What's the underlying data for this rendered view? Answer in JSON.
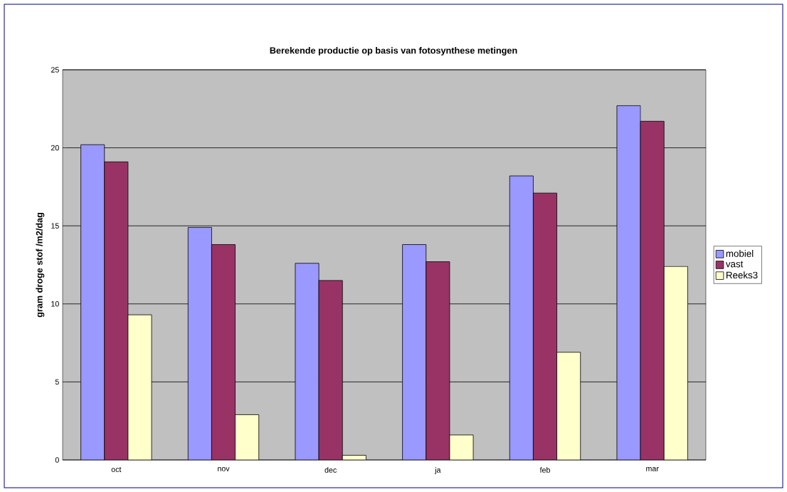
{
  "chart_data": {
    "type": "bar",
    "title": "Berekende productie op basis van fotosynthese metingen",
    "ylabel": "gram droge stof /m2/dag",
    "categories": [
      "oct",
      "nov",
      "dec",
      "ja",
      "feb",
      "mar"
    ],
    "series": [
      {
        "name": "mobiel",
        "color": "#9999ff",
        "values": [
          20.2,
          14.9,
          12.6,
          13.8,
          18.2,
          22.7
        ]
      },
      {
        "name": "vast",
        "color": "#993366",
        "values": [
          19.1,
          13.8,
          11.5,
          12.7,
          17.1,
          21.7
        ]
      },
      {
        "name": "Reeks3",
        "color": "#ffffcc",
        "values": [
          9.3,
          2.9,
          0.3,
          1.6,
          6.9,
          12.4
        ]
      }
    ],
    "ylim": [
      0,
      25
    ],
    "yticks": [
      0,
      5,
      10,
      15,
      20,
      25
    ],
    "grid": "y",
    "legend": "right"
  }
}
